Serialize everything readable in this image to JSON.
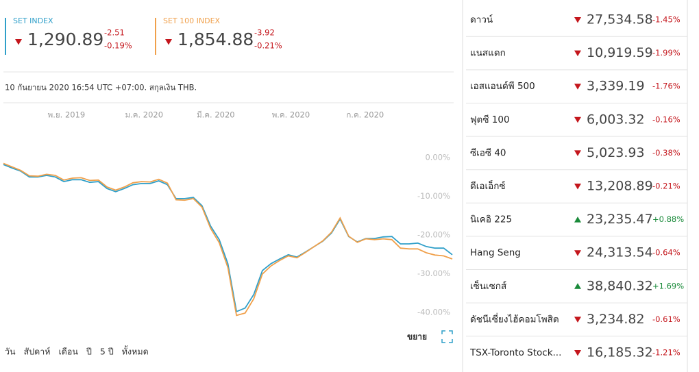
{
  "header": {
    "indices": [
      {
        "name": "SET INDEX",
        "color": "#2f9fc9",
        "direction": "down",
        "value": "1,290.89",
        "change": "-2.51",
        "change_pct": "-0.19%"
      },
      {
        "name": "SET 100 INDEX",
        "color": "#f0a04b",
        "direction": "down",
        "value": "1,854.88",
        "change": "-3.92",
        "change_pct": "-0.21%"
      }
    ]
  },
  "info": "10 กันยายน 2020 16:54 UTC +07:00. สกุลเงิน THB.",
  "chart_data": {
    "type": "line",
    "series": [
      {
        "name": "SET INDEX",
        "color": "#2f9fc9",
        "values": [
          -1.8,
          -2.7,
          -3.5,
          -5,
          -5,
          -4.6,
          -5,
          -6.2,
          -5.7,
          -5.7,
          -6.4,
          -6.2,
          -8,
          -8.8,
          -8,
          -7,
          -6.7,
          -6.7,
          -6,
          -7,
          -10.6,
          -10.6,
          -10.3,
          -12.4,
          -17.7,
          -21.2,
          -27.4,
          -39.8,
          -38.9,
          -35.4,
          -29.2,
          -27.4,
          -26.2,
          -25.1,
          -25.7,
          -24.4,
          -23,
          -21.6,
          -19.5,
          -15.9,
          -20.4,
          -21.8,
          -20.9,
          -20.9,
          -20.5,
          -20.4,
          -22.3,
          -22.3,
          -22.1,
          -23,
          -23.4,
          -23.4,
          -25.1
        ]
      },
      {
        "name": "SET 100 INDEX",
        "color": "#f0a04b",
        "values": [
          -1.5,
          -2.4,
          -3.3,
          -4.7,
          -4.8,
          -4.3,
          -4.6,
          -5.8,
          -5.3,
          -5.2,
          -5.9,
          -5.8,
          -7.6,
          -8.4,
          -7.6,
          -6.5,
          -6.2,
          -6.3,
          -5.6,
          -6.6,
          -10.9,
          -11,
          -10.6,
          -12.8,
          -18.3,
          -22,
          -28.4,
          -40.8,
          -40.2,
          -36.5,
          -30.1,
          -28,
          -26.6,
          -25.4,
          -25.9,
          -24.5,
          -23,
          -21.5,
          -19.3,
          -15.6,
          -20.3,
          -21.9,
          -21,
          -21.2,
          -21,
          -21.2,
          -23.4,
          -23.6,
          -23.6,
          -24.6,
          -25.2,
          -25.4,
          -26.2
        ]
      }
    ],
    "xlim": [
      0,
      52
    ],
    "xticks": [
      {
        "value": 7.3,
        "label": "พ.ย. 2019"
      },
      {
        "value": 16.3,
        "label": "ม.ค. 2020"
      },
      {
        "value": 24.6,
        "label": "มี.ค. 2020"
      },
      {
        "value": 33.3,
        "label": "พ.ค. 2020"
      },
      {
        "value": 41.9,
        "label": "ก.ค. 2020"
      }
    ],
    "ylim": [
      -42.5,
      7.1
    ],
    "yticks": [
      {
        "value": 0,
        "label": "0.00%"
      },
      {
        "value": -10,
        "label": "-10.00%"
      },
      {
        "value": -20,
        "label": "-20.00%"
      },
      {
        "value": -30,
        "label": "-30.00%"
      },
      {
        "value": -40,
        "label": "-40.00%"
      }
    ],
    "grid": false
  },
  "controls": {
    "expand": "ขยาย",
    "ranges": [
      "วัน",
      "สัปดาห์",
      "เดือน",
      "ปี",
      "5 ปี",
      "ทั้งหมด"
    ]
  },
  "markets": [
    {
      "name": "ดาวน์",
      "direction": "down",
      "value": "27,534.58",
      "change": "-1.45%"
    },
    {
      "name": "แนสแดก",
      "direction": "down",
      "value": "10,919.59",
      "change": "-1.99%"
    },
    {
      "name": "เอสแอนด์พี 500",
      "direction": "down",
      "value": "3,339.19",
      "change": "-1.76%"
    },
    {
      "name": "ฟุตซี 100",
      "direction": "down",
      "value": "6,003.32",
      "change": "-0.16%"
    },
    {
      "name": "ซีเอซี 40",
      "direction": "down",
      "value": "5,023.93",
      "change": "-0.38%"
    },
    {
      "name": "ดีเอเอ็กซ์",
      "direction": "down",
      "value": "13,208.89",
      "change": "-0.21%"
    },
    {
      "name": "นิเคอิ 225",
      "direction": "up",
      "value": "23,235.47",
      "change": "+0.88%"
    },
    {
      "name": "Hang Seng",
      "direction": "down",
      "value": "24,313.54",
      "change": "-0.64%"
    },
    {
      "name": "เซ็นเซกส์",
      "direction": "up",
      "value": "38,840.32",
      "change": "+1.69%"
    },
    {
      "name": "ดัชนีเซี่ยงไฮ้คอมโพสิต",
      "direction": "down",
      "value": "3,234.82",
      "change": "-0.61%"
    },
    {
      "name": "TSX-Toronto Stock...",
      "direction": "down",
      "value": "16,185.32",
      "change": "-1.21%"
    }
  ]
}
